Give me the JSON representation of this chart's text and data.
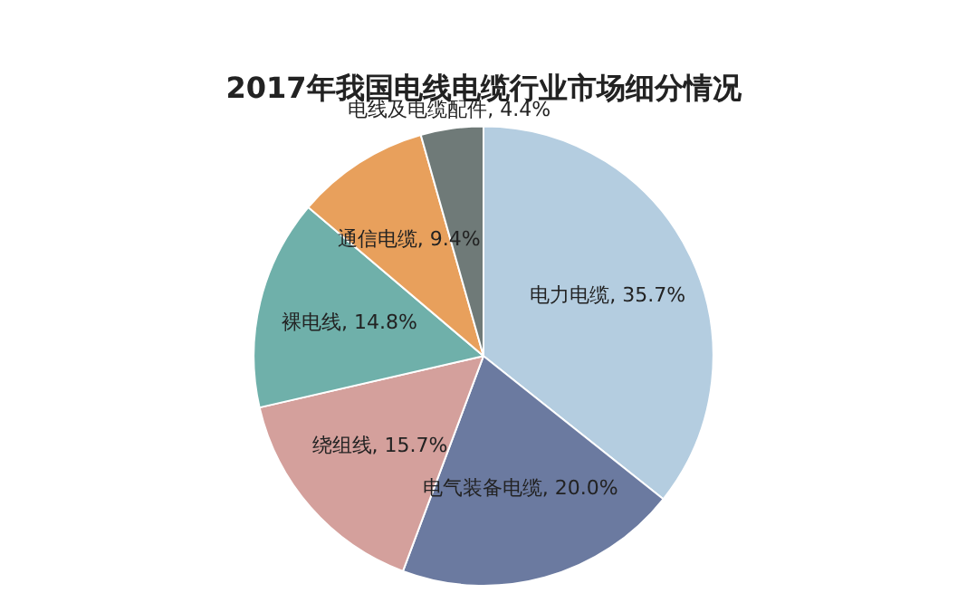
{
  "chart_data": {
    "type": "pie",
    "title": "2017年我国电线电缆行业市场细分情况",
    "categories": [
      "电力电缆",
      "电气装备电缆",
      "绕组线",
      "裸电线",
      "通信电缆",
      "电线及电缆配件"
    ],
    "values": [
      35.7,
      20.0,
      15.7,
      14.8,
      9.4,
      4.4
    ],
    "value_labels": [
      "35.7%",
      "20.0%",
      "15.7%",
      "14.8%",
      "9.4%",
      "4.4%"
    ],
    "colors": [
      "#b4cde0",
      "#6b7aa0",
      "#d4a09c",
      "#6fb0aa",
      "#e8a05c",
      "#6f7a78"
    ],
    "legend": false
  }
}
